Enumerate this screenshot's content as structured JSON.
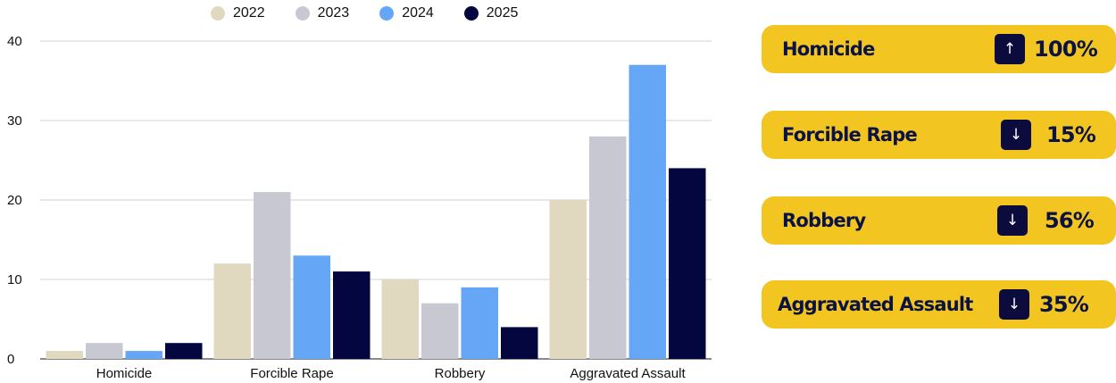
{
  "chart_data": {
    "type": "bar",
    "categories": [
      "Homicide",
      "Forcible Rape",
      "Robbery",
      "Aggravated Assault"
    ],
    "series": [
      {
        "name": "2022",
        "color": "#e0d8bf",
        "values": [
          1,
          12,
          10,
          20
        ]
      },
      {
        "name": "2023",
        "color": "#c8c8d2",
        "values": [
          2,
          21,
          7,
          28
        ]
      },
      {
        "name": "2024",
        "color": "#66a6f7",
        "values": [
          1,
          13,
          9,
          37
        ]
      },
      {
        "name": "2025",
        "color": "#03063f",
        "values": [
          2,
          11,
          4,
          24
        ]
      }
    ],
    "title": "",
    "xlabel": "",
    "ylabel": "",
    "ylim": [
      0,
      40
    ],
    "yticks": [
      0,
      10,
      20,
      30,
      40
    ],
    "grid": true,
    "legend_position": "top"
  },
  "cards": [
    {
      "label": "Homicide",
      "direction": "up",
      "arrow": "↑",
      "percent": "100%"
    },
    {
      "label": "Forcible Rape",
      "direction": "down",
      "arrow": "↓",
      "percent": "15%"
    },
    {
      "label": "Robbery",
      "direction": "down",
      "arrow": "↓",
      "percent": "56%"
    },
    {
      "label": "Aggravated Assault",
      "direction": "down",
      "arrow": "↓",
      "percent": "35%"
    }
  ],
  "colors": {
    "card_bg": "#f2c521",
    "card_text": "#0b1244",
    "arrow_bg": "#0b0b3d"
  }
}
